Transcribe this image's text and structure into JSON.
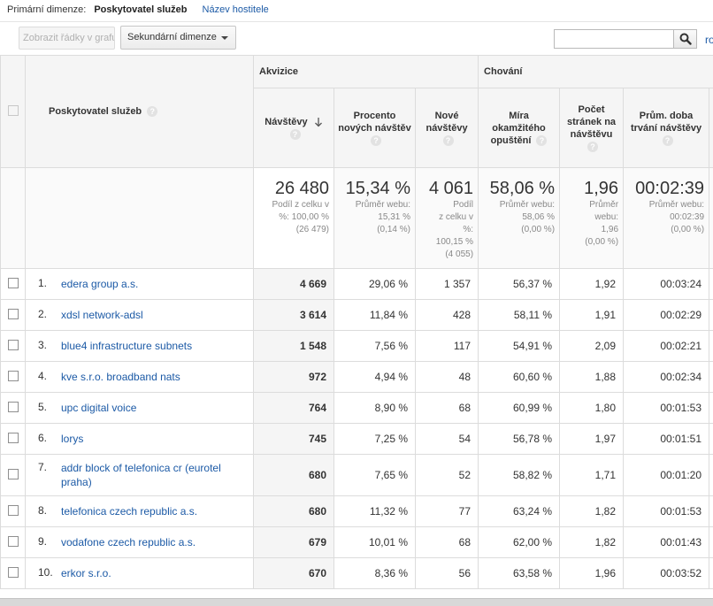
{
  "dimensions": {
    "label": "Primární dimenze:",
    "current": "Poskytovatel služeb",
    "alternative": "Název hostitele"
  },
  "toolbar": {
    "plot_rows_label": "Zobrazit řádky v grafu",
    "secondary_dimension_label": "Sekundární dimenze",
    "search_placeholder": "",
    "cut_text": "ro"
  },
  "table": {
    "group_headers": {
      "acquisition": "Akvizice",
      "behavior": "Chování"
    },
    "dimension_header": "Poskytovatel služeb",
    "columns": [
      {
        "label": "Návštěvy"
      },
      {
        "label": "Procento nových návštěv"
      },
      {
        "label": "Nové návštěvy"
      },
      {
        "label": "Míra okamžitého opuštění"
      },
      {
        "label": "Počet stránek na návštěvu"
      },
      {
        "label": "Prům. doba trvání návštěvy"
      }
    ],
    "totals": [
      {
        "value": "26 480",
        "lines": [
          "Podíl z celku v",
          "%: 100,00 %",
          "(26 479)"
        ]
      },
      {
        "value": "15,34 %",
        "lines": [
          "Průměr webu:",
          "15,31 %",
          "(0,14 %)"
        ]
      },
      {
        "value": "4 061",
        "lines": [
          "Podíl",
          "z celku v",
          "%:",
          "100,15 %",
          "(4 055)"
        ]
      },
      {
        "value": "58,06 %",
        "lines": [
          "Průměr webu:",
          "58,06 %",
          "(0,00 %)"
        ]
      },
      {
        "value": "1,96",
        "lines": [
          "Průměr",
          "webu:",
          "1,96",
          "(0,00 %)"
        ]
      },
      {
        "value": "00:02:39",
        "lines": [
          "Průměr webu:",
          "00:02:39",
          "(0,00 %)"
        ]
      }
    ],
    "rows": [
      {
        "idx": "1.",
        "name": "edera group a.s.",
        "visits": "4 669",
        "pct_new": "29,06 %",
        "new_visits": "1 357",
        "bounce": "56,37 %",
        "pages": "1,92",
        "duration": "00:03:24"
      },
      {
        "idx": "2.",
        "name": "xdsl network-adsl",
        "visits": "3 614",
        "pct_new": "11,84 %",
        "new_visits": "428",
        "bounce": "58,11 %",
        "pages": "1,91",
        "duration": "00:02:29"
      },
      {
        "idx": "3.",
        "name": "blue4 infrastructure subnets",
        "visits": "1 548",
        "pct_new": "7,56 %",
        "new_visits": "117",
        "bounce": "54,91 %",
        "pages": "2,09",
        "duration": "00:02:21"
      },
      {
        "idx": "4.",
        "name": "kve s.r.o. broadband nats",
        "visits": "972",
        "pct_new": "4,94 %",
        "new_visits": "48",
        "bounce": "60,60 %",
        "pages": "1,88",
        "duration": "00:02:34"
      },
      {
        "idx": "5.",
        "name": "upc digital voice",
        "visits": "764",
        "pct_new": "8,90 %",
        "new_visits": "68",
        "bounce": "60,99 %",
        "pages": "1,80",
        "duration": "00:01:53"
      },
      {
        "idx": "6.",
        "name": "lorys",
        "visits": "745",
        "pct_new": "7,25 %",
        "new_visits": "54",
        "bounce": "56,78 %",
        "pages": "1,97",
        "duration": "00:01:51"
      },
      {
        "idx": "7.",
        "name": "addr block of telefonica cr (eurotel praha)",
        "visits": "680",
        "pct_new": "7,65 %",
        "new_visits": "52",
        "bounce": "58,82 %",
        "pages": "1,71",
        "duration": "00:01:20"
      },
      {
        "idx": "8.",
        "name": "telefonica czech republic a.s.",
        "visits": "680",
        "pct_new": "11,32 %",
        "new_visits": "77",
        "bounce": "63,24 %",
        "pages": "1,82",
        "duration": "00:01:53"
      },
      {
        "idx": "9.",
        "name": "vodafone czech republic a.s.",
        "visits": "679",
        "pct_new": "10,01 %",
        "new_visits": "68",
        "bounce": "62,00 %",
        "pages": "1,82",
        "duration": "00:01:43"
      },
      {
        "idx": "10.",
        "name": "erkor s.r.o.",
        "visits": "670",
        "pct_new": "8,36 %",
        "new_visits": "56",
        "bounce": "63,58 %",
        "pages": "1,96",
        "duration": "00:03:52"
      }
    ]
  }
}
